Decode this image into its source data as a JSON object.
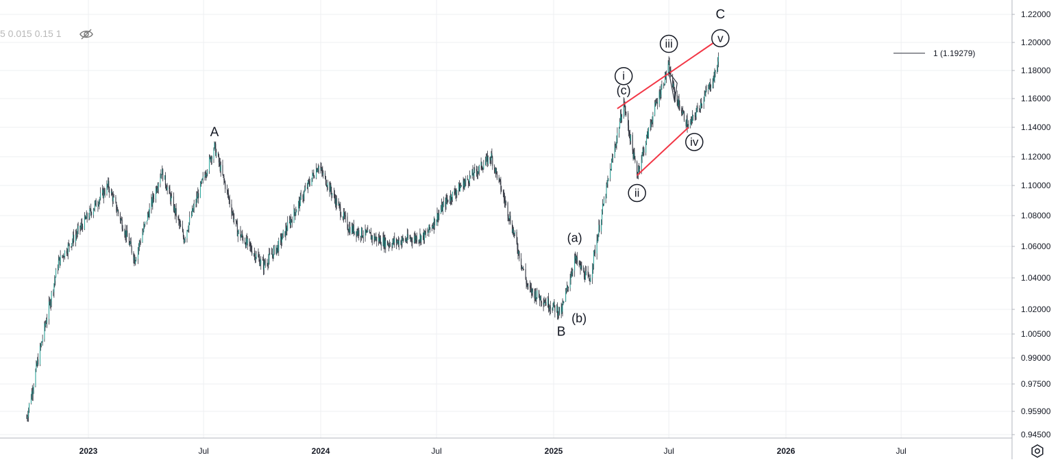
{
  "indicator": {
    "text": "5 0.015 0.15 1"
  },
  "icons": {
    "visibility": "eye-off-icon",
    "settings": "gear-icon"
  },
  "chart_data": {
    "type": "candlestick",
    "title": "",
    "xlabel": "",
    "ylabel": "",
    "ylim": [
      0.945,
      1.225
    ],
    "y_scale": "nonlinear",
    "y_ticks": [
      "1.22000",
      "1.20000",
      "1.18000",
      "1.16000",
      "1.14000",
      "1.12000",
      "1.10000",
      "1.08000",
      "1.06000",
      "1.04000",
      "1.02000",
      "1.00500",
      "0.99000",
      "0.97500",
      "0.95900",
      "0.94500"
    ],
    "x_ticks": [
      "2023",
      "Jul",
      "2024",
      "Jul",
      "2025",
      "Jul",
      "2026",
      "Jul"
    ],
    "grid": true,
    "colors": {
      "up": "#26a69a",
      "candle": "#2a2e39",
      "trendline": "#f23645",
      "grid": "#eeeff2",
      "text": "#131722"
    },
    "series": [
      {
        "x": [
          "2022-09-26",
          "2022-11-15",
          "2023-02-01",
          "2023-03-15",
          "2023-04-26",
          "2023-05-31",
          "2023-07-18",
          "2023-08-23",
          "2023-10-03",
          "2023-10-26",
          "2023-12-28",
          "2024-02-14",
          "2024-04-16",
          "2024-06-14",
          "2024-07-17",
          "2024-09-25",
          "2024-10-23",
          "2024-11-22",
          "2025-01-13",
          "2025-02-03",
          "2025-02-26",
          "2025-04-21",
          "2025-05-12",
          "2025-06-10",
          "2025-07-01",
          "2025-07-10",
          "2025-08-01",
          "2025-09-10",
          "2025-09-17"
        ],
        "values": [
          0.955,
          1.05,
          1.1,
          1.052,
          1.11,
          1.065,
          1.127,
          1.07,
          1.048,
          1.06,
          1.114,
          1.072,
          1.062,
          1.067,
          1.09,
          1.12,
          1.08,
          1.033,
          1.018,
          1.052,
          1.038,
          1.157,
          1.108,
          1.155,
          1.183,
          1.163,
          1.14,
          1.175,
          1.188
        ]
      }
    ],
    "price_line": {
      "label": "1 (1.19279)",
      "value": 1.19279
    },
    "wave_labels": [
      {
        "text": "A",
        "x": "2023-07-18",
        "y": 1.134
      },
      {
        "text": "B",
        "x": "2025-01-13",
        "y": 1.004
      },
      {
        "text": "C",
        "x": "2025-09-20",
        "y": 1.217
      },
      {
        "text": "(a)",
        "x": "2025-02-03",
        "y": 1.063
      },
      {
        "text": "(b)",
        "x": "2025-02-10",
        "y": 1.012
      },
      {
        "text": "(c)",
        "x": "2025-04-21",
        "y": 1.163
      }
    ],
    "circle_labels": [
      {
        "text": "i",
        "x": "2025-04-21",
        "y": 1.176
      },
      {
        "text": "ii",
        "x": "2025-05-12",
        "y": 1.095
      },
      {
        "text": "iii",
        "x": "2025-07-01",
        "y": 1.199
      },
      {
        "text": "iv",
        "x": "2025-08-10",
        "y": 1.13
      },
      {
        "text": "v",
        "x": "2025-09-20",
        "y": 1.203
      }
    ],
    "trendlines": [
      {
        "from": {
          "x": "2025-04-11",
          "y": 1.153
        },
        "to": {
          "x": "2025-09-10",
          "y": 1.2
        }
      },
      {
        "from": {
          "x": "2025-05-12",
          "y": 1.107
        },
        "to": {
          "x": "2025-08-01",
          "y": 1.14
        }
      }
    ]
  }
}
